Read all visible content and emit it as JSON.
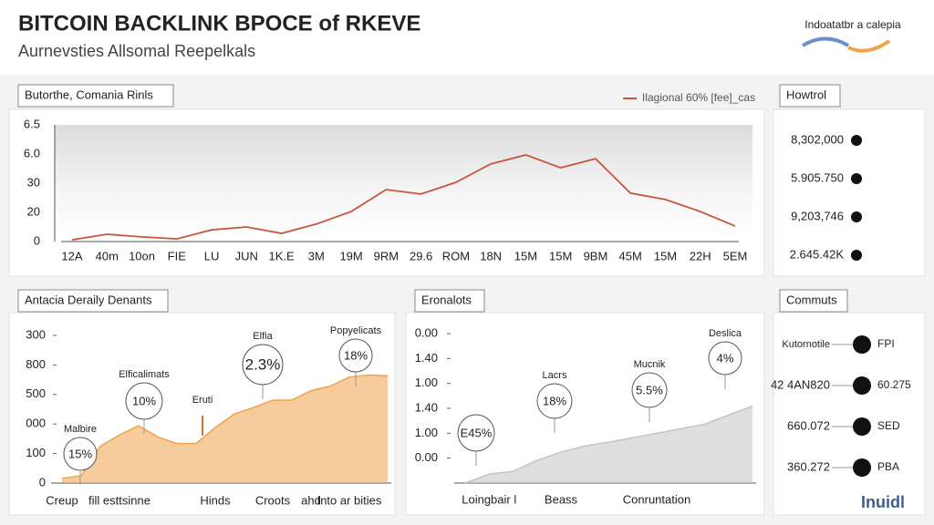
{
  "header": {
    "title": "BITCOIN BACKLINK BPOCE of RKEVE",
    "subtitle": "Aurnevsties Allsomal Reepelkals",
    "brand": "Indoatatbr a calepia"
  },
  "chart_data": [
    {
      "type": "line",
      "title": "Butorthe, Comania Rinls",
      "categories": [
        "12A",
        "40m",
        "10on",
        "FIE",
        "LU",
        "JUN",
        "1K.E",
        "3M",
        "19M",
        "9RM",
        "29.6",
        "ROM",
        "18N",
        "15M",
        "15M",
        "9BM",
        "45M",
        "15M",
        "22H",
        "5EM"
      ],
      "series": [
        {
          "name": "Ilagional 60% [fee]_cas",
          "color": "#c8553d",
          "values": [
            0.6,
            2.5,
            1.6,
            0.9,
            4,
            5,
            2.8,
            6,
            10.3,
            17.8,
            16.3,
            20.3,
            26.6,
            29.7,
            25.3,
            28.4,
            16.6,
            14.4,
            10.3,
            5.3
          ]
        }
      ],
      "ylim": [
        0,
        40
      ],
      "yticks": [
        0,
        {
          "value": 10,
          "label": "20"
        },
        {
          "value": 20,
          "label": "30"
        },
        {
          "value": 30,
          "label": "6.0"
        },
        {
          "value": 40,
          "label": "6.5"
        }
      ],
      "grid": false
    },
    {
      "type": "area",
      "title": "Antacia Deraily Denants",
      "categories": [
        "Creup",
        null,
        null,
        "fill esttsinne",
        null,
        null,
        null,
        null,
        "Hinds",
        null,
        null,
        "Croots",
        null,
        "ahd",
        null,
        "Into ar bities",
        null,
        null
      ],
      "series": [
        {
          "color": "#f0a34a",
          "values": [
            16,
            25,
            125,
            163,
            194,
            156,
            134,
            134,
            188,
            234,
            256,
            281,
            281,
            313,
            328,
            359,
            366,
            363
          ]
        }
      ],
      "ylim": [
        0,
        500
      ],
      "yticks": [
        0,
        100,
        {
          "value": 200,
          "label": "000"
        },
        {
          "value": 300,
          "label": "500"
        },
        {
          "value": 400,
          "label": "800"
        },
        {
          "value": 500,
          "label": "300"
        }
      ],
      "annotations": [
        {
          "label": "Malbire",
          "value": "15%"
        },
        {
          "label": "Elficalimats",
          "value": "10%"
        },
        {
          "label": "Eruti"
        },
        {
          "label": "Elfia",
          "value": "2.3%"
        },
        {
          "label": "Popyelicats",
          "value": "18%"
        }
      ]
    },
    {
      "type": "area",
      "title": "Eronalots",
      "categories": [
        null,
        "Loingbair l",
        null,
        null,
        "Beass",
        null,
        null,
        null,
        "Conruntation",
        null,
        null,
        null,
        null
      ],
      "series": [
        {
          "color": "#c4c4c4",
          "values": [
            0,
            0.36,
            0.47,
            0.91,
            1.24,
            1.49,
            1.64,
            1.82,
            2.0,
            2.18,
            2.36,
            2.73,
            3.09
          ]
        }
      ],
      "ylim": [
        0,
        6
      ],
      "yticks": [
        {
          "value": 1,
          "label": "0.00"
        },
        {
          "value": 2,
          "label": "1.00"
        },
        {
          "value": 3,
          "label": "1.40"
        },
        {
          "value": 4,
          "label": "1.00"
        },
        {
          "value": 5,
          "label": "1.40"
        },
        {
          "value": 6,
          "label": "0.00"
        }
      ],
      "annotations": [
        {
          "value": "E45%"
        },
        {
          "label": "Lacrs",
          "value": "18%"
        },
        {
          "label": "Mucnik",
          "value": "5.5%"
        },
        {
          "label": "Deslica",
          "value": "4%"
        }
      ]
    }
  ],
  "side_list": {
    "title": "Howtrol",
    "items": [
      "8,302,000",
      "5.905.750",
      "9,203,746",
      "2.645.42K"
    ]
  },
  "comments": {
    "title": "Commuts",
    "rows": [
      [
        "Kutornotile",
        "FPI"
      ],
      [
        "42 4AN820",
        "60.275"
      ],
      [
        "660.072",
        "SED"
      ],
      [
        "360.272",
        "PBA"
      ]
    ]
  },
  "footer": {
    "logo": "Inuidl"
  }
}
